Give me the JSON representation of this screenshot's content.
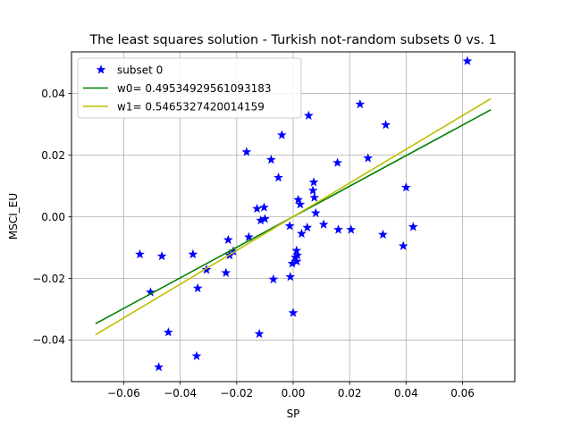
{
  "chart_data": {
    "type": "scatter",
    "title": "The least squares solution - Turkish not-random subsets 0 vs. 1",
    "xlabel": "SP",
    "ylabel": "MSCI_EU",
    "xlim": [
      -0.0785,
      0.0785
    ],
    "ylim": [
      -0.0535,
      0.0535
    ],
    "xticks": [
      -0.06,
      -0.04,
      -0.02,
      0.0,
      0.02,
      0.04,
      0.06
    ],
    "xtick_labels": [
      "−0.06",
      "−0.04",
      "−0.02",
      "0.00",
      "0.02",
      "0.04",
      "0.06"
    ],
    "yticks": [
      -0.04,
      -0.02,
      0.0,
      0.02,
      0.04
    ],
    "ytick_labels": [
      "−0.04",
      "−0.02",
      "0.00",
      "0.02",
      "0.04"
    ],
    "grid": true,
    "legend_position": "top-left",
    "series": [
      {
        "name": "subset 0",
        "kind": "scatter",
        "marker": "star",
        "color": "#0000ff",
        "points": [
          [
            0.0617,
            0.0505
          ],
          [
            -0.0543,
            -0.0122
          ],
          [
            -0.0465,
            -0.0128
          ],
          [
            -0.0505,
            -0.0245
          ],
          [
            -0.0476,
            -0.0488
          ],
          [
            -0.0442,
            -0.0375
          ],
          [
            -0.0355,
            -0.0122
          ],
          [
            -0.0342,
            -0.0452
          ],
          [
            -0.0338,
            -0.0232
          ],
          [
            -0.0307,
            -0.0172
          ],
          [
            -0.0238,
            -0.0182
          ],
          [
            -0.023,
            -0.0075
          ],
          [
            -0.0225,
            -0.0125
          ],
          [
            -0.0212,
            -0.0112
          ],
          [
            -0.0165,
            0.021
          ],
          [
            -0.0157,
            -0.0066
          ],
          [
            -0.0128,
            0.0026
          ],
          [
            -0.012,
            -0.038
          ],
          [
            -0.0115,
            -0.0012
          ],
          [
            -0.0103,
            0.003
          ],
          [
            -0.01,
            -0.0007
          ],
          [
            -0.0078,
            0.0185
          ],
          [
            -0.007,
            -0.0203
          ],
          [
            -0.0052,
            0.0127
          ],
          [
            -0.004,
            0.0265
          ],
          [
            -0.0012,
            -0.003
          ],
          [
            -0.001,
            -0.0195
          ],
          [
            -0.0003,
            -0.0152
          ],
          [
            0.0,
            -0.0312
          ],
          [
            0.0008,
            -0.0132
          ],
          [
            0.0012,
            -0.011
          ],
          [
            0.0013,
            -0.0145
          ],
          [
            0.0015,
            -0.0125
          ],
          [
            0.0018,
            0.0055
          ],
          [
            0.0025,
            0.004
          ],
          [
            0.003,
            -0.0055
          ],
          [
            0.005,
            -0.0035
          ],
          [
            0.0055,
            0.0328
          ],
          [
            0.007,
            0.0085
          ],
          [
            0.0073,
            0.0112
          ],
          [
            0.0075,
            0.0062
          ],
          [
            0.008,
            0.0012
          ],
          [
            0.0108,
            -0.0025
          ],
          [
            0.0157,
            0.0175
          ],
          [
            0.016,
            -0.0042
          ],
          [
            0.0205,
            -0.0042
          ],
          [
            0.0237,
            0.0365
          ],
          [
            0.0265,
            0.019
          ],
          [
            0.0318,
            -0.0058
          ],
          [
            0.0328,
            0.0298
          ],
          [
            0.039,
            -0.0095
          ],
          [
            0.04,
            0.0095
          ],
          [
            0.0425,
            -0.0033
          ]
        ]
      },
      {
        "name": "w0= 0.49534929561093183",
        "kind": "line",
        "color": "#008000",
        "x": [
          -0.07,
          0.07
        ],
        "y": [
          -0.0347,
          0.0347
        ]
      },
      {
        "name": "w1= 0.5465327420014159",
        "kind": "line",
        "color": "#bfbf00",
        "x": [
          -0.07,
          0.07
        ],
        "y": [
          -0.0383,
          0.0383
        ]
      }
    ]
  }
}
